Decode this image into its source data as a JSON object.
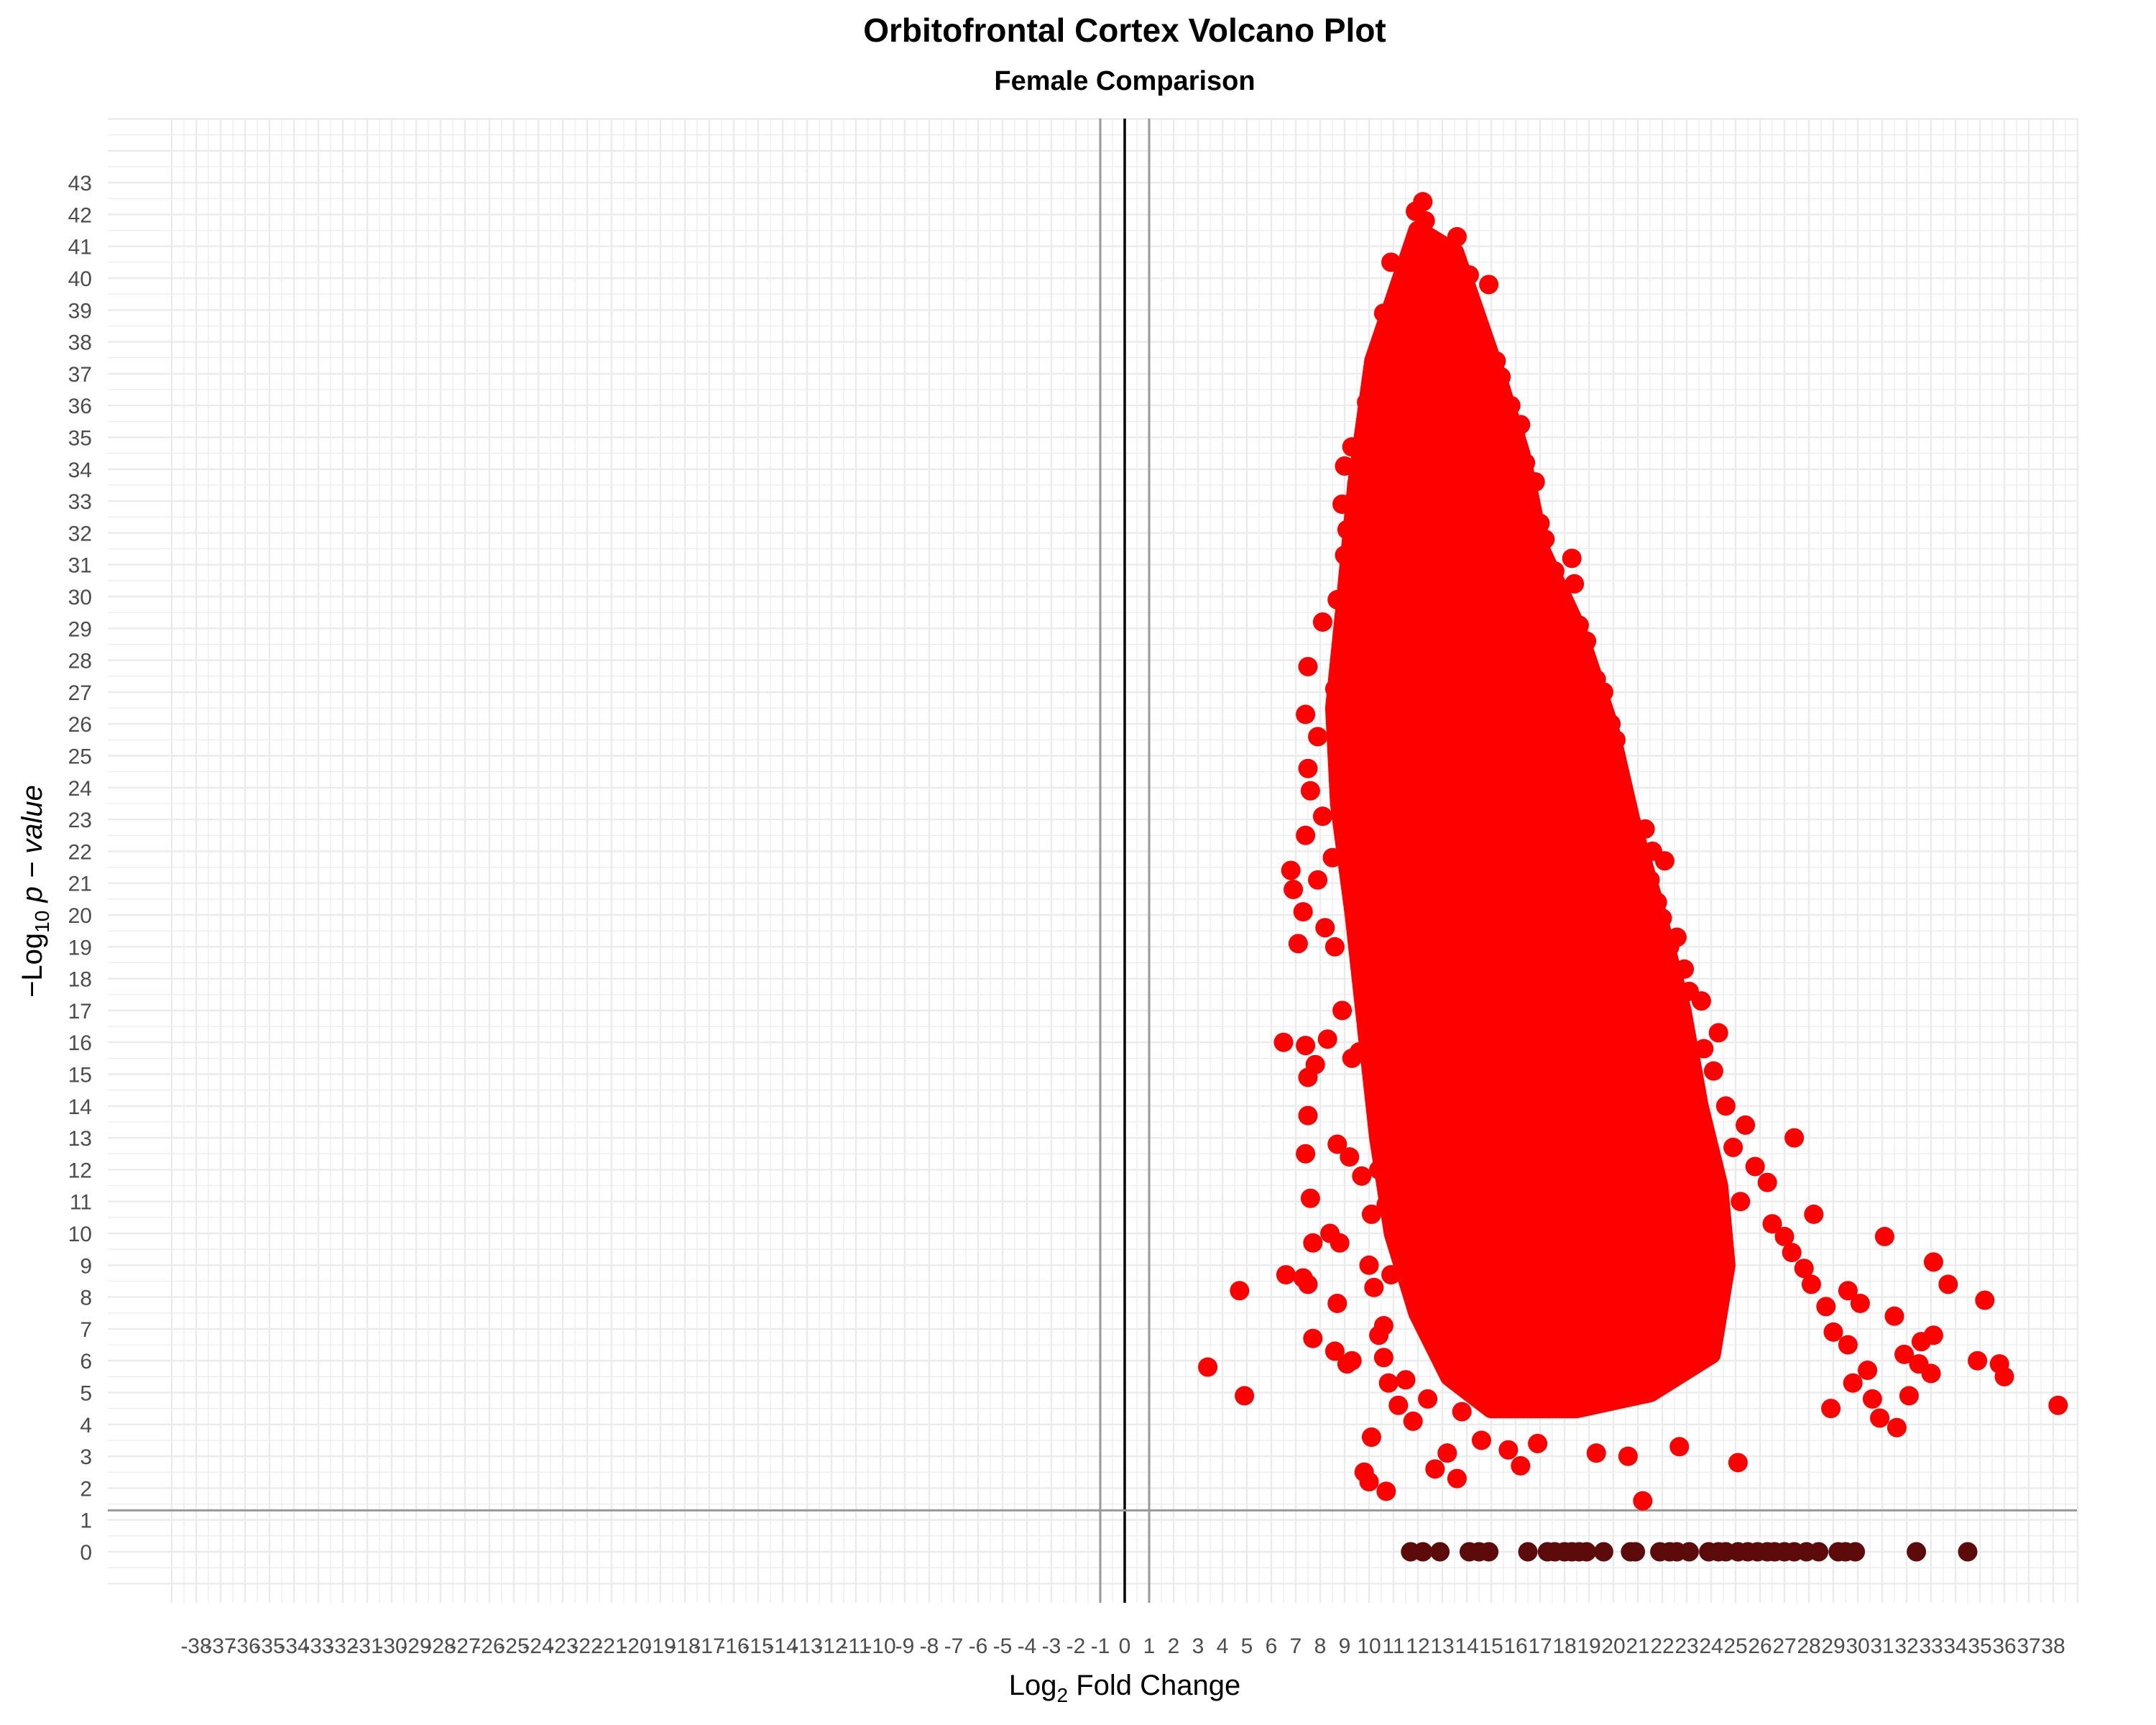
{
  "chart_data": {
    "type": "scatter",
    "title": "Orbitofrontal Cortex Volcano Plot",
    "subtitle": "Female Comparison",
    "xlabel": "Log2 Fold Change",
    "xlabel_parts": {
      "base": "Log",
      "sub": "2",
      "rest": " Fold Change"
    },
    "ylabel": "-Log10 p-value",
    "ylabel_parts": {
      "prefix": "−Log",
      "sub": "10",
      "italic": " p − value"
    },
    "xlim": [
      -39,
      39
    ],
    "ylim": [
      -1,
      45
    ],
    "x_ticks": [
      -38,
      -37,
      -36,
      -35,
      -34,
      -33,
      -32,
      -31,
      -30,
      -29,
      -28,
      -27,
      -26,
      -25,
      -24,
      -23,
      -22,
      -21,
      -20,
      -19,
      -18,
      -17,
      -16,
      -15,
      -14,
      -13,
      -12,
      -11,
      -10,
      -9,
      -8,
      -7,
      -6,
      -5,
      -4,
      -3,
      -2,
      -1,
      0,
      1,
      2,
      3,
      4,
      5,
      6,
      7,
      8,
      9,
      10,
      11,
      12,
      13,
      14,
      15,
      16,
      17,
      18,
      19,
      20,
      21,
      22,
      23,
      24,
      25,
      26,
      27,
      28,
      29,
      30,
      31,
      32,
      33,
      34,
      35,
      36,
      37,
      38
    ],
    "y_ticks": [
      0,
      1,
      2,
      3,
      4,
      5,
      6,
      7,
      8,
      9,
      10,
      11,
      12,
      13,
      14,
      15,
      16,
      17,
      18,
      19,
      20,
      21,
      22,
      23,
      24,
      25,
      26,
      27,
      28,
      29,
      30,
      31,
      32,
      33,
      34,
      35,
      36,
      37,
      38,
      39,
      40,
      41,
      42,
      43
    ],
    "grid": true,
    "reference_lines": {
      "vertical": [
        -1,
        0,
        1
      ],
      "horizontal": [
        1.3
      ]
    },
    "colors": {
      "significant": "#ff0000",
      "not_significant": "#5c0a0a",
      "ref_line": "#999999",
      "zero_line": "#000000",
      "grid": "#ebebeb"
    },
    "series": [
      {
        "name": "significant",
        "color": "#ff0000",
        "points": [
          [
            12.2,
            42.4
          ],
          [
            11.9,
            42.1
          ],
          [
            12.3,
            41.8
          ],
          [
            13.6,
            41.3
          ],
          [
            13.2,
            40.9
          ],
          [
            10.9,
            40.5
          ],
          [
            14.1,
            40.1
          ],
          [
            14.9,
            39.8
          ],
          [
            12.6,
            39.5
          ],
          [
            10.6,
            38.9
          ],
          [
            12.1,
            38.6
          ],
          [
            13.9,
            38.8
          ],
          [
            10.8,
            38.2
          ],
          [
            14.4,
            37.9
          ],
          [
            10.5,
            37.6
          ],
          [
            15.2,
            37.4
          ],
          [
            10.2,
            37.1
          ],
          [
            15.4,
            36.9
          ],
          [
            11.2,
            36.6
          ],
          [
            9.9,
            36.1
          ],
          [
            14.6,
            36.2
          ],
          [
            15.8,
            36.0
          ],
          [
            12.8,
            35.7
          ],
          [
            16.2,
            35.4
          ],
          [
            10.1,
            35.0
          ],
          [
            16.0,
            35.1
          ],
          [
            9.3,
            34.7
          ],
          [
            16.4,
            34.2
          ],
          [
            9.0,
            34.1
          ],
          [
            16.8,
            33.6
          ],
          [
            8.9,
            32.9
          ],
          [
            17.0,
            32.3
          ],
          [
            9.1,
            32.1
          ],
          [
            17.2,
            31.8
          ],
          [
            9.0,
            31.3
          ],
          [
            18.3,
            31.2
          ],
          [
            17.6,
            30.8
          ],
          [
            8.7,
            29.9
          ],
          [
            18.4,
            30.4
          ],
          [
            8.1,
            29.2
          ],
          [
            18.6,
            29.1
          ],
          [
            18.9,
            28.6
          ],
          [
            7.5,
            27.8
          ],
          [
            19.3,
            27.4
          ],
          [
            8.6,
            27.1
          ],
          [
            19.6,
            27.0
          ],
          [
            7.4,
            26.3
          ],
          [
            19.9,
            26.0
          ],
          [
            7.9,
            25.6
          ],
          [
            20.1,
            25.5
          ],
          [
            7.5,
            24.6
          ],
          [
            20.2,
            24.3
          ],
          [
            7.6,
            23.9
          ],
          [
            20.4,
            23.6
          ],
          [
            8.1,
            23.1
          ],
          [
            21.3,
            22.7
          ],
          [
            7.4,
            22.5
          ],
          [
            21.6,
            22.0
          ],
          [
            8.5,
            21.8
          ],
          [
            22.1,
            21.7
          ],
          [
            6.8,
            21.4
          ],
          [
            21.5,
            21.1
          ],
          [
            7.9,
            21.1
          ],
          [
            21.8,
            20.4
          ],
          [
            6.9,
            20.8
          ],
          [
            22.0,
            19.9
          ],
          [
            7.3,
            20.1
          ],
          [
            22.6,
            19.3
          ],
          [
            8.2,
            19.6
          ],
          [
            22.3,
            19.0
          ],
          [
            7.1,
            19.1
          ],
          [
            8.6,
            19.0
          ],
          [
            22.9,
            18.3
          ],
          [
            9.8,
            18.7
          ],
          [
            23.1,
            17.6
          ],
          [
            23.6,
            17.3
          ],
          [
            8.9,
            17.0
          ],
          [
            10.5,
            16.8
          ],
          [
            24.3,
            16.3
          ],
          [
            6.5,
            16.0
          ],
          [
            7.4,
            15.9
          ],
          [
            8.3,
            16.1
          ],
          [
            23.7,
            15.8
          ],
          [
            7.8,
            15.3
          ],
          [
            9.3,
            15.5
          ],
          [
            24.1,
            15.1
          ],
          [
            9.6,
            15.7
          ],
          [
            7.5,
            14.9
          ],
          [
            10.4,
            14.4
          ],
          [
            24.6,
            14.0
          ],
          [
            7.5,
            13.7
          ],
          [
            11.2,
            13.5
          ],
          [
            25.4,
            13.4
          ],
          [
            27.4,
            13.0
          ],
          [
            8.7,
            12.8
          ],
          [
            24.9,
            12.7
          ],
          [
            7.4,
            12.5
          ],
          [
            9.2,
            12.4
          ],
          [
            25.8,
            12.1
          ],
          [
            10.4,
            12.0
          ],
          [
            9.7,
            11.8
          ],
          [
            26.3,
            11.6
          ],
          [
            7.6,
            11.1
          ],
          [
            10.7,
            10.9
          ],
          [
            25.2,
            11.0
          ],
          [
            10.1,
            10.6
          ],
          [
            28.2,
            10.6
          ],
          [
            8.4,
            10.0
          ],
          [
            26.5,
            10.3
          ],
          [
            7.7,
            9.7
          ],
          [
            8.8,
            9.7
          ],
          [
            27.0,
            9.9
          ],
          [
            31.1,
            9.9
          ],
          [
            10.0,
            9.0
          ],
          [
            27.3,
            9.4
          ],
          [
            33.1,
            9.1
          ],
          [
            6.6,
            8.7
          ],
          [
            7.3,
            8.6
          ],
          [
            10.9,
            8.7
          ],
          [
            27.8,
            8.9
          ],
          [
            4.7,
            8.2
          ],
          [
            7.5,
            8.4
          ],
          [
            10.2,
            8.3
          ],
          [
            28.1,
            8.4
          ],
          [
            33.7,
            8.4
          ],
          [
            29.6,
            8.2
          ],
          [
            35.2,
            7.9
          ],
          [
            8.7,
            7.8
          ],
          [
            10.6,
            7.1
          ],
          [
            28.7,
            7.7
          ],
          [
            30.1,
            7.8
          ],
          [
            31.5,
            7.4
          ],
          [
            7.7,
            6.7
          ],
          [
            10.4,
            6.8
          ],
          [
            29.0,
            6.9
          ],
          [
            32.6,
            6.6
          ],
          [
            33.1,
            6.8
          ],
          [
            8.6,
            6.3
          ],
          [
            9.3,
            6.0
          ],
          [
            10.6,
            6.1
          ],
          [
            29.6,
            6.5
          ],
          [
            31.9,
            6.2
          ],
          [
            3.4,
            5.8
          ],
          [
            9.1,
            5.9
          ],
          [
            30.4,
            5.7
          ],
          [
            32.5,
            5.9
          ],
          [
            34.9,
            6.0
          ],
          [
            35.8,
            5.9
          ],
          [
            10.8,
            5.3
          ],
          [
            11.5,
            5.4
          ],
          [
            29.8,
            5.3
          ],
          [
            33.0,
            5.6
          ],
          [
            36.0,
            5.5
          ],
          [
            4.9,
            4.9
          ],
          [
            11.2,
            4.6
          ],
          [
            12.4,
            4.8
          ],
          [
            30.6,
            4.8
          ],
          [
            32.1,
            4.9
          ],
          [
            28.9,
            4.5
          ],
          [
            38.2,
            4.6
          ],
          [
            11.8,
            4.1
          ],
          [
            13.8,
            4.4
          ],
          [
            30.9,
            4.2
          ],
          [
            31.6,
            3.9
          ],
          [
            10.1,
            3.6
          ],
          [
            13.2,
            3.1
          ],
          [
            14.6,
            3.5
          ],
          [
            15.7,
            3.2
          ],
          [
            16.9,
            3.4
          ],
          [
            19.3,
            3.1
          ],
          [
            20.6,
            3.0
          ],
          [
            22.7,
            3.3
          ],
          [
            25.1,
            2.8
          ],
          [
            12.7,
            2.6
          ],
          [
            13.6,
            2.3
          ],
          [
            16.2,
            2.7
          ],
          [
            9.8,
            2.5
          ],
          [
            10.0,
            2.2
          ],
          [
            10.7,
            1.9
          ],
          [
            21.2,
            1.6
          ]
        ],
        "dense_core": {
          "outline": [
            [
              10.2,
              37.4
            ],
            [
              12.0,
              41.5
            ],
            [
              13.5,
              40.8
            ],
            [
              15.2,
              37.0
            ],
            [
              16.2,
              34.5
            ],
            [
              17.0,
              31.5
            ],
            [
              18.5,
              29.0
            ],
            [
              19.8,
              26.0
            ],
            [
              20.7,
              23.0
            ],
            [
              21.8,
              20.0
            ],
            [
              22.8,
              17.0
            ],
            [
              23.5,
              14.0
            ],
            [
              24.3,
              11.5
            ],
            [
              24.6,
              9.0
            ],
            [
              24.0,
              6.2
            ],
            [
              21.5,
              5.0
            ],
            [
              18.5,
              4.5
            ],
            [
              15.0,
              4.5
            ],
            [
              13.3,
              5.5
            ],
            [
              12.0,
              7.5
            ],
            [
              11.0,
              10.0
            ],
            [
              10.4,
              13.0
            ],
            [
              9.9,
              16.5
            ],
            [
              9.4,
              20.0
            ],
            [
              8.8,
              23.5
            ],
            [
              8.6,
              26.5
            ],
            [
              9.0,
              29.5
            ],
            [
              9.5,
              33.5
            ]
          ],
          "approx_points": 5000
        }
      },
      {
        "name": "not_significant",
        "color": "#5c0a0a",
        "points": [
          [
            11.7,
            0
          ],
          [
            12.2,
            0
          ],
          [
            12.9,
            0
          ],
          [
            14.1,
            0
          ],
          [
            14.5,
            0
          ],
          [
            14.9,
            0
          ],
          [
            16.5,
            0
          ],
          [
            17.3,
            0
          ],
          [
            17.6,
            0
          ],
          [
            18.0,
            0
          ],
          [
            18.3,
            0
          ],
          [
            18.6,
            0
          ],
          [
            18.9,
            0
          ],
          [
            19.6,
            0
          ],
          [
            20.7,
            0
          ],
          [
            20.9,
            0
          ],
          [
            21.9,
            0
          ],
          [
            22.3,
            0
          ],
          [
            22.6,
            0
          ],
          [
            23.1,
            0
          ],
          [
            23.9,
            0
          ],
          [
            24.3,
            0
          ],
          [
            24.6,
            0
          ],
          [
            25.1,
            0
          ],
          [
            25.5,
            0
          ],
          [
            25.9,
            0
          ],
          [
            26.3,
            0
          ],
          [
            26.6,
            0
          ],
          [
            27.0,
            0
          ],
          [
            27.4,
            0
          ],
          [
            27.9,
            0
          ],
          [
            28.4,
            0
          ],
          [
            29.2,
            0
          ],
          [
            29.5,
            0
          ],
          [
            29.9,
            0
          ],
          [
            32.4,
            0
          ],
          [
            34.5,
            0
          ]
        ]
      }
    ]
  }
}
